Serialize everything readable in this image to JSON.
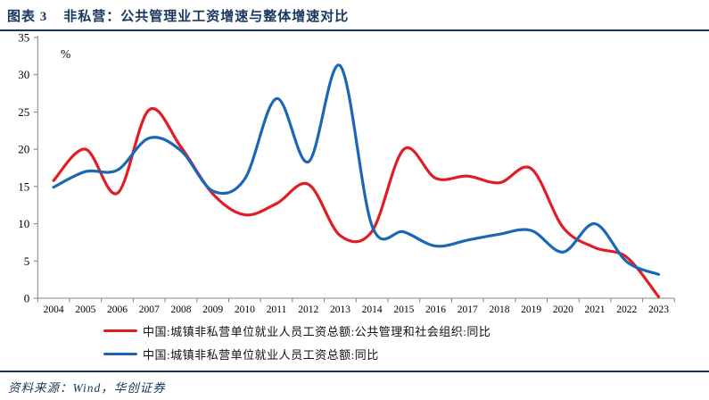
{
  "header": {
    "figure_label": "图表 3",
    "title": "非私营：公共管理业工资增速与整体增速对比"
  },
  "footer": {
    "source": "资料来源：Wind，华创证券"
  },
  "colors": {
    "accent_navy": "#17375e",
    "axis_line": "#808080",
    "series_red": "#e11d23",
    "series_blue": "#1b66b5"
  },
  "chart_data": {
    "type": "line",
    "title": "非私营：公共管理业工资增速与整体增速对比",
    "unit_label": "%",
    "xlabel": "",
    "ylabel": "%",
    "ylim": [
      0,
      35
    ],
    "yticks": [
      0,
      5,
      10,
      15,
      20,
      25,
      30,
      35
    ],
    "grid": false,
    "legend_position": "bottom",
    "line_style": "smoothed",
    "x": [
      2004,
      2005,
      2006,
      2007,
      2008,
      2009,
      2010,
      2011,
      2012,
      2013,
      2014,
      2015,
      2016,
      2017,
      2018,
      2019,
      2020,
      2021,
      2022,
      2023
    ],
    "series": [
      {
        "name": "中国:城镇非私营单位就业人员工资总额:公共管理和社会组织:同比",
        "color": "#e11d23",
        "values": [
          15.8,
          20.0,
          14.1,
          25.3,
          20.3,
          14.0,
          11.2,
          12.7,
          15.3,
          8.4,
          9.0,
          20.0,
          16.1,
          16.4,
          15.5,
          17.4,
          9.5,
          6.8,
          5.5,
          0.2
        ]
      },
      {
        "name": "中国:城镇非私营单位就业人员工资总额:同比",
        "color": "#1b66b5",
        "values": [
          14.9,
          17.0,
          17.2,
          21.5,
          19.8,
          14.4,
          16.0,
          26.8,
          18.3,
          31.2,
          9.7,
          8.9,
          7.0,
          7.8,
          8.6,
          9.1,
          6.2,
          10.0,
          4.9,
          3.2
        ]
      }
    ]
  }
}
